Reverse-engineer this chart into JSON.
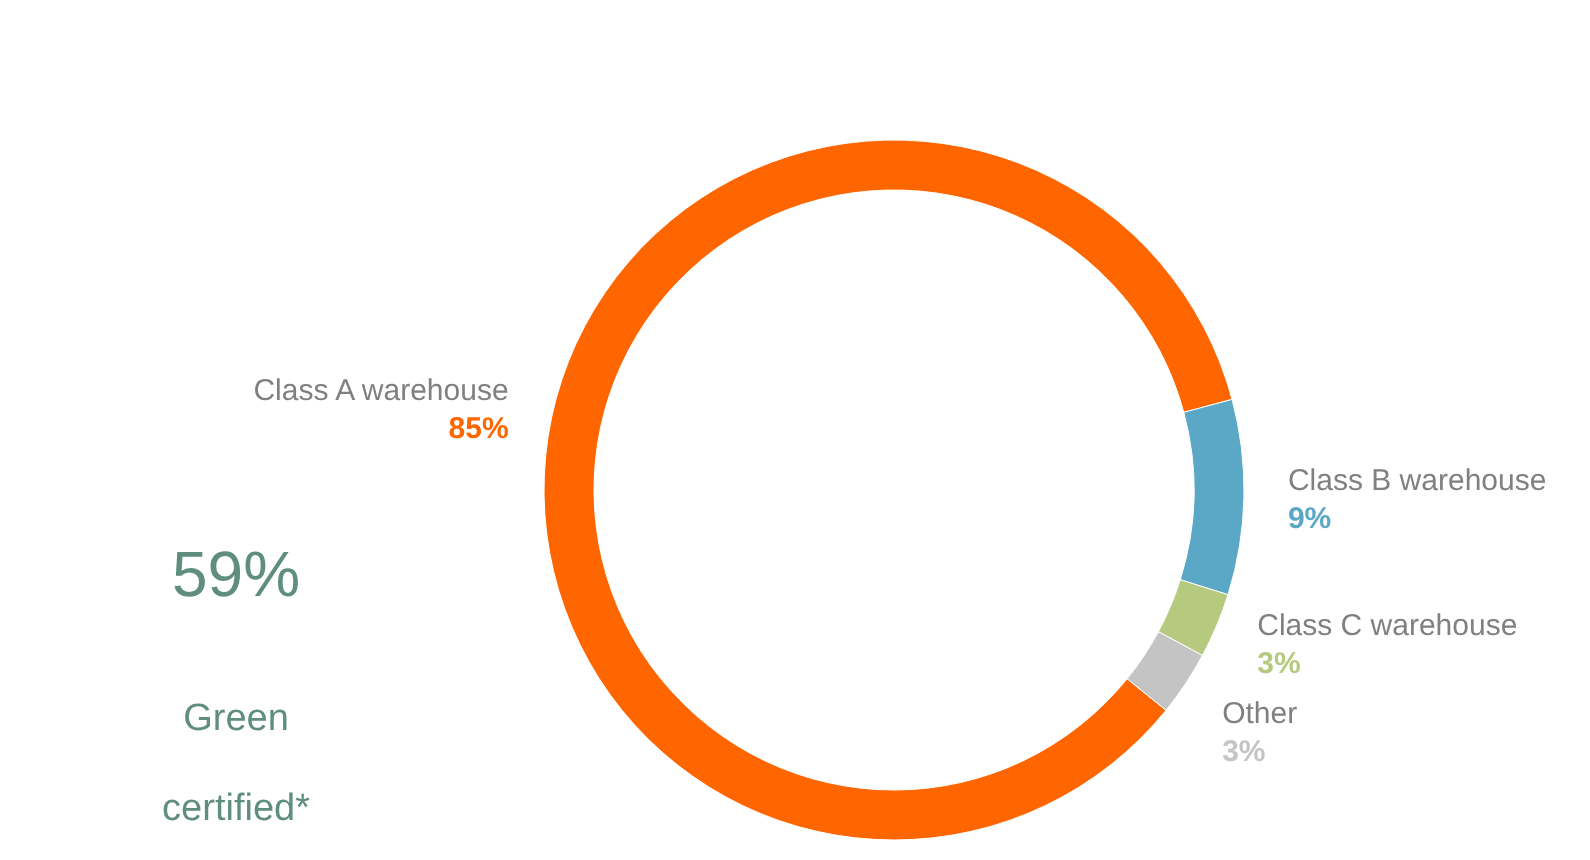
{
  "chart_data": {
    "type": "donut",
    "categories": [
      "Class A warehouse",
      "Class B warehouse",
      "Class C warehouse",
      "Other"
    ],
    "values": [
      85,
      9,
      3,
      3
    ],
    "colors": [
      "#ff6600",
      "#5aa7c6",
      "#b5c97f",
      "#c4c4c4"
    ],
    "value_labels": [
      "85%",
      "9%",
      "3%",
      "3%"
    ],
    "annotations": [
      "59%",
      "Green certified*"
    ]
  }
}
